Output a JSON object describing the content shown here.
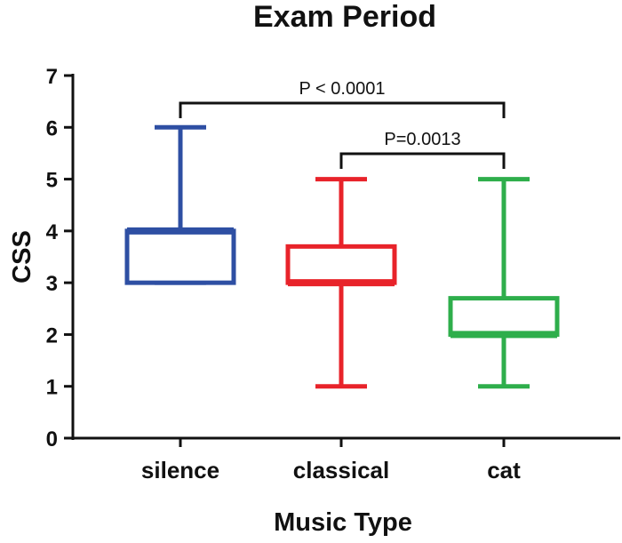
{
  "chart_data": {
    "type": "box",
    "title": "Exam Period",
    "xlabel": "Music Type",
    "ylabel": "CSS",
    "ylim": [
      0,
      7
    ],
    "yticks": [
      "0",
      "1",
      "2",
      "3",
      "4",
      "5",
      "6",
      "7"
    ],
    "grid": false,
    "categories": [
      "silence",
      "classical",
      "cat"
    ],
    "series": [
      {
        "category": "silence",
        "color": "#2E4FA3",
        "min": 3,
        "q1": 3,
        "median": 4,
        "q3": 4,
        "max": 6
      },
      {
        "category": "classical",
        "color": "#E8232A",
        "min": 1,
        "q1": 3,
        "median": 3,
        "q3": 3.7,
        "max": 5
      },
      {
        "category": "cat",
        "color": "#2EAE4B",
        "min": 1,
        "q1": 2,
        "median": 2,
        "q3": 2.7,
        "max": 5
      }
    ],
    "annotations": [
      {
        "text": "P < 0.0001",
        "from": "silence",
        "to": "cat"
      },
      {
        "text": "P=0.0013",
        "from": "classical",
        "to": "cat"
      }
    ]
  }
}
